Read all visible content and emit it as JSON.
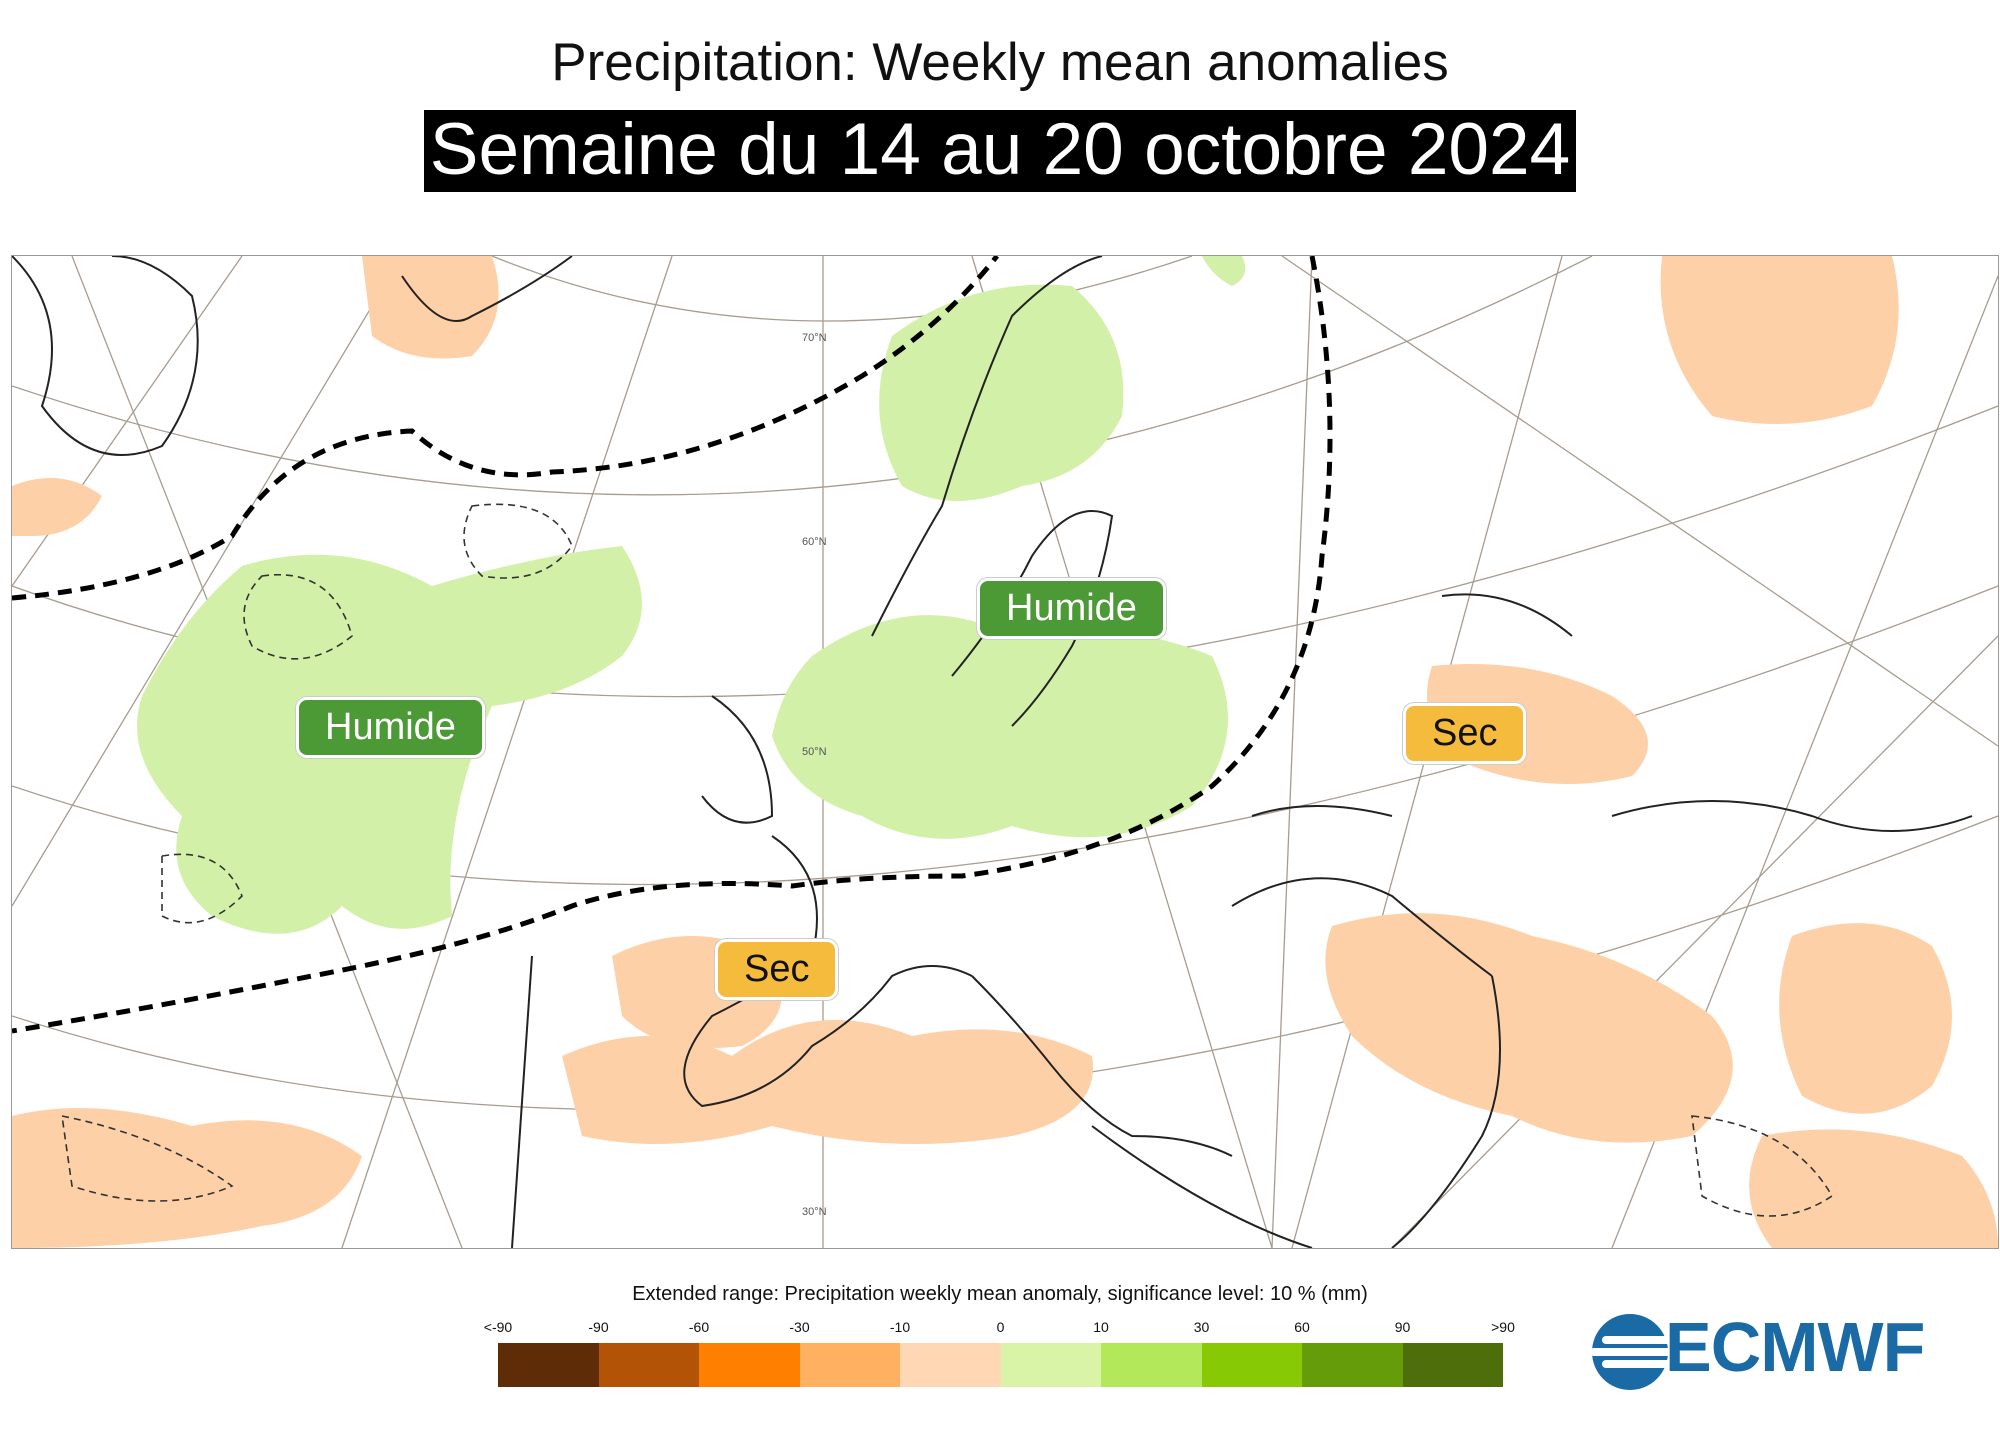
{
  "header": {
    "title": "Precipitation: Weekly mean anomalies",
    "subtitle": "Semaine du 14 au 20 octobre 2024"
  },
  "map": {
    "lat_labels": [
      "70°N",
      "60°N",
      "50°N",
      "30°N"
    ],
    "annotations": [
      {
        "label": "Humide",
        "kind": "wet",
        "region": "North Atlantic"
      },
      {
        "label": "Humide",
        "kind": "wet",
        "region": "Scandinavia / Baltic"
      },
      {
        "label": "Sec",
        "kind": "dry",
        "region": "Iberian Peninsula"
      },
      {
        "label": "Sec",
        "kind": "dry",
        "region": "Black Sea / Turkey"
      }
    ],
    "colors": {
      "wet_tag": "#4b9a35",
      "dry_tag": "#f5bb3c",
      "wet_fill": "#d3f0a8",
      "dry_fill": "#fdd0a8"
    }
  },
  "legend": {
    "title": "Extended range: Precipitation weekly mean anomaly, significance level: 10 % (mm)",
    "ticks": [
      "<-90",
      "-90",
      "-60",
      "-30",
      "-10",
      "0",
      "10",
      "30",
      "60",
      "90",
      ">90"
    ],
    "colors": [
      "#5e2c06",
      "#b35306",
      "#ff8000",
      "#ffb061",
      "#ffd7b5",
      "#d9f4a6",
      "#b3e85a",
      "#88c905",
      "#649c0a",
      "#4e6e0c"
    ]
  },
  "logo": {
    "text": "ECMWF"
  }
}
